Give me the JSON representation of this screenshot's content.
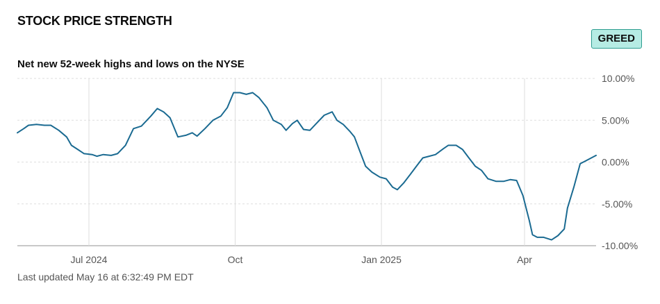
{
  "title": "STOCK PRICE STRENGTH",
  "badge": "GREED",
  "subtitle": "Net new 52-week highs and lows on the NYSE",
  "footer": "Last updated May 16 at 6:32:49 PM EDT",
  "colors": {
    "line": "#1a6a91",
    "grid": "#dddddd",
    "badge_bg": "#b6ece4",
    "badge_border": "#2c9c8f"
  },
  "chart_data": {
    "type": "line",
    "title": "Net new 52-week highs and lows on the NYSE",
    "ylim": [
      -10,
      10
    ],
    "y_ticks": [
      10,
      5,
      0,
      -5,
      -10
    ],
    "y_tick_labels": [
      "10.00%",
      "5.00%",
      "0.00%",
      "-5.00%",
      "-10.00%"
    ],
    "x_range": [
      "2024-05-17",
      "2025-05-16"
    ],
    "x_ticks": [
      {
        "date": "2024-07-01",
        "label": "Jul 2024"
      },
      {
        "date": "2024-10-01",
        "label": "Oct"
      },
      {
        "date": "2025-01-01",
        "label": "Jan 2025"
      },
      {
        "date": "2025-04-01",
        "label": "Apr"
      }
    ],
    "grid": true,
    "series": [
      {
        "points": [
          [
            "2024-05-17",
            3.5
          ],
          [
            "2024-05-21",
            4.0
          ],
          [
            "2024-05-24",
            4.4
          ],
          [
            "2024-05-29",
            4.5
          ],
          [
            "2024-06-03",
            4.4
          ],
          [
            "2024-06-07",
            4.4
          ],
          [
            "2024-06-12",
            3.8
          ],
          [
            "2024-06-17",
            3.0
          ],
          [
            "2024-06-20",
            2.0
          ],
          [
            "2024-06-24",
            1.5
          ],
          [
            "2024-06-28",
            1.0
          ],
          [
            "2024-07-03",
            0.9
          ],
          [
            "2024-07-06",
            0.7
          ],
          [
            "2024-07-10",
            0.9
          ],
          [
            "2024-07-15",
            0.8
          ],
          [
            "2024-07-19",
            1.0
          ],
          [
            "2024-07-24",
            2.0
          ],
          [
            "2024-07-29",
            4.0
          ],
          [
            "2024-08-03",
            4.3
          ],
          [
            "2024-08-09",
            5.5
          ],
          [
            "2024-08-13",
            6.4
          ],
          [
            "2024-08-17",
            6.0
          ],
          [
            "2024-08-21",
            5.3
          ],
          [
            "2024-08-26",
            3.0
          ],
          [
            "2024-08-31",
            3.2
          ],
          [
            "2024-09-04",
            3.5
          ],
          [
            "2024-09-07",
            3.1
          ],
          [
            "2024-09-12",
            4.0
          ],
          [
            "2024-09-17",
            5.0
          ],
          [
            "2024-09-22",
            5.5
          ],
          [
            "2024-09-26",
            6.5
          ],
          [
            "2024-09-30",
            8.3
          ],
          [
            "2024-10-04",
            8.3
          ],
          [
            "2024-10-08",
            8.1
          ],
          [
            "2024-10-12",
            8.3
          ],
          [
            "2024-10-16",
            7.7
          ],
          [
            "2024-10-21",
            6.5
          ],
          [
            "2024-10-25",
            5.0
          ],
          [
            "2024-10-30",
            4.5
          ],
          [
            "2024-11-02",
            3.8
          ],
          [
            "2024-11-06",
            4.6
          ],
          [
            "2024-11-09",
            5.0
          ],
          [
            "2024-11-13",
            3.9
          ],
          [
            "2024-11-17",
            3.8
          ],
          [
            "2024-11-21",
            4.6
          ],
          [
            "2024-11-26",
            5.6
          ],
          [
            "2024-12-01",
            6.0
          ],
          [
            "2024-12-04",
            5.0
          ],
          [
            "2024-12-08",
            4.5
          ],
          [
            "2024-12-12",
            3.7
          ],
          [
            "2024-12-15",
            3.0
          ],
          [
            "2024-12-18",
            1.5
          ],
          [
            "2024-12-22",
            -0.5
          ],
          [
            "2024-12-26",
            -1.2
          ],
          [
            "2024-12-31",
            -1.8
          ],
          [
            "2025-01-04",
            -2.0
          ],
          [
            "2025-01-08",
            -3.0
          ],
          [
            "2025-01-11",
            -3.3
          ],
          [
            "2025-01-15",
            -2.5
          ],
          [
            "2025-01-19",
            -1.5
          ],
          [
            "2025-01-23",
            -0.5
          ],
          [
            "2025-01-27",
            0.5
          ],
          [
            "2025-01-31",
            0.7
          ],
          [
            "2025-02-04",
            0.9
          ],
          [
            "2025-02-09",
            1.6
          ],
          [
            "2025-02-12",
            2.0
          ],
          [
            "2025-02-17",
            2.0
          ],
          [
            "2025-02-21",
            1.5
          ],
          [
            "2025-02-25",
            0.5
          ],
          [
            "2025-03-01",
            -0.5
          ],
          [
            "2025-03-05",
            -1.0
          ],
          [
            "2025-03-09",
            -2.0
          ],
          [
            "2025-03-14",
            -2.3
          ],
          [
            "2025-03-19",
            -2.3
          ],
          [
            "2025-03-23",
            -2.1
          ],
          [
            "2025-03-27",
            -2.2
          ],
          [
            "2025-03-31",
            -4.0
          ],
          [
            "2025-04-04",
            -7.0
          ],
          [
            "2025-04-06",
            -8.7
          ],
          [
            "2025-04-09",
            -9.0
          ],
          [
            "2025-04-13",
            -9.0
          ],
          [
            "2025-04-18",
            -9.3
          ],
          [
            "2025-04-22",
            -8.8
          ],
          [
            "2025-04-26",
            -8.0
          ],
          [
            "2025-04-28",
            -5.5
          ],
          [
            "2025-05-02",
            -3.0
          ],
          [
            "2025-05-06",
            -0.2
          ],
          [
            "2025-05-10",
            0.2
          ],
          [
            "2025-05-16",
            0.8
          ]
        ]
      }
    ]
  }
}
